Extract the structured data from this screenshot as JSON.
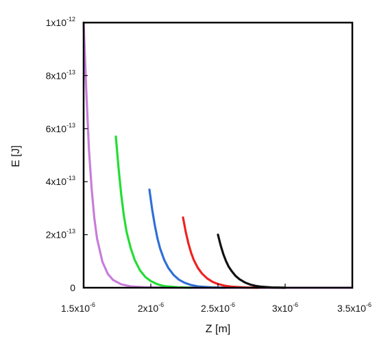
{
  "chart_data": {
    "type": "line",
    "title": "",
    "xlabel": "Z [m]",
    "ylabel": "E [J]",
    "xlim": [
      1.5e-06,
      3.5e-06
    ],
    "ylim": [
      0,
      1e-12
    ],
    "grid": false,
    "legend": "none",
    "x_ticks": [
      {
        "value": 1.5e-06,
        "label_base": "1.5x10",
        "label_exp": "-6"
      },
      {
        "value": 2e-06,
        "label_base": "2x10",
        "label_exp": "-6"
      },
      {
        "value": 2.5e-06,
        "label_base": "2.5x10",
        "label_exp": "-6"
      },
      {
        "value": 3e-06,
        "label_base": "3x10",
        "label_exp": "-6"
      },
      {
        "value": 3.5e-06,
        "label_base": "3.5x10",
        "label_exp": "-6"
      }
    ],
    "y_ticks": [
      {
        "value": 0,
        "label_base": "0",
        "label_exp": ""
      },
      {
        "value": 2e-13,
        "label_base": "2x10",
        "label_exp": "-13"
      },
      {
        "value": 4e-13,
        "label_base": "4x10",
        "label_exp": "-13"
      },
      {
        "value": 6e-13,
        "label_base": "6x10",
        "label_exp": "-13"
      },
      {
        "value": 8e-13,
        "label_base": "8x10",
        "label_exp": "-13"
      },
      {
        "value": 1e-12,
        "label_base": "1x10",
        "label_exp": "-12"
      }
    ],
    "series": [
      {
        "color": "#c77dd9",
        "x": [
          1.5e-06,
          1.52e-06,
          1.54e-06,
          1.56e-06,
          1.58e-06,
          1.6e-06,
          1.64e-06,
          1.68e-06,
          1.72e-06,
          1.78e-06,
          1.85e-06,
          1.95e-06,
          2.1e-06,
          2.3e-06,
          2.6e-06,
          3e-06,
          3.5e-06
        ],
        "y": [
          1e-12,
          7.4e-13,
          5.2e-13,
          3.7e-13,
          2.6e-13,
          1.85e-13,
          9.8e-14,
          5.2e-14,
          2.9e-14,
          1.3e-14,
          5e-15,
          1.5e-15,
          3e-16,
          0,
          0,
          0,
          0
        ]
      },
      {
        "color": "#22dd33",
        "x": [
          1.74e-06,
          1.76e-06,
          1.78e-06,
          1.8e-06,
          1.82e-06,
          1.85e-06,
          1.88e-06,
          1.92e-06,
          1.96e-06,
          2e-06,
          2.05e-06,
          2.1e-06,
          2.2e-06,
          2.3e-06
        ],
        "y": [
          5.7e-13,
          4.5e-13,
          3.5e-13,
          2.7e-13,
          2.1e-13,
          1.5e-13,
          1.05e-13,
          6.5e-14,
          4e-14,
          2.5e-14,
          1.3e-14,
          6e-15,
          1.5e-15,
          0
        ]
      },
      {
        "color": "#2f6fd6",
        "x": [
          1.99e-06,
          2.01e-06,
          2.03e-06,
          2.05e-06,
          2.07e-06,
          2.1e-06,
          2.13e-06,
          2.17e-06,
          2.21e-06,
          2.25e-06,
          2.3e-06,
          2.35e-06,
          2.45e-06,
          2.55e-06
        ],
        "y": [
          3.7e-13,
          2.95e-13,
          2.35e-13,
          1.85e-13,
          1.47e-13,
          1.05e-13,
          7.5e-14,
          4.8e-14,
          3e-14,
          1.9e-14,
          1e-14,
          5e-15,
          1.2e-15,
          0
        ]
      },
      {
        "color": "#ee2222",
        "x": [
          2.24e-06,
          2.26e-06,
          2.28e-06,
          2.3e-06,
          2.32e-06,
          2.35e-06,
          2.38e-06,
          2.42e-06,
          2.46e-06,
          2.5e-06,
          2.55e-06,
          2.6e-06,
          2.7e-06,
          2.8e-06
        ],
        "y": [
          2.65e-13,
          2.1e-13,
          1.67e-13,
          1.32e-13,
          1.05e-13,
          7.5e-14,
          5.4e-14,
          3.5e-14,
          2.2e-14,
          1.4e-14,
          7.5e-15,
          4e-15,
          1e-15,
          0
        ]
      },
      {
        "color": "#111111",
        "x": [
          2.5e-06,
          2.52e-06,
          2.54e-06,
          2.56e-06,
          2.58e-06,
          2.6e-06,
          2.63e-06,
          2.66e-06,
          2.7e-06,
          2.74e-06,
          2.78e-06,
          2.82e-06,
          2.9e-06,
          3e-06
        ],
        "y": [
          2e-13,
          1.6e-13,
          1.27e-13,
          1e-13,
          7.9e-14,
          6.4e-14,
          4.5e-14,
          3.2e-14,
          2e-14,
          1.2e-14,
          7e-15,
          4e-15,
          1e-15,
          0
        ]
      }
    ]
  }
}
